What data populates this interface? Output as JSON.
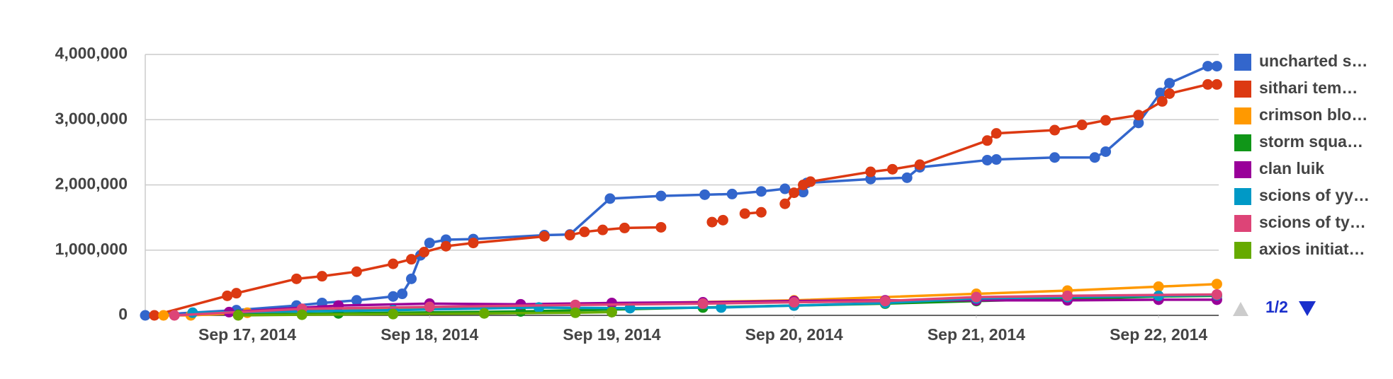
{
  "chart_data": {
    "type": "line",
    "xlim": [
      16.44,
      22.33
    ],
    "xticks": [
      {
        "value": 17,
        "label": "Sep 17, 2014"
      },
      {
        "value": 18,
        "label": "Sep 18, 2014"
      },
      {
        "value": 19,
        "label": "Sep 19, 2014"
      },
      {
        "value": 20,
        "label": "Sep 20, 2014"
      },
      {
        "value": 21,
        "label": "Sep 21, 2014"
      },
      {
        "value": 22,
        "label": "Sep 22, 2014"
      }
    ],
    "ylim": [
      0,
      4000000
    ],
    "yticks": [
      {
        "value": 0,
        "label": "0"
      },
      {
        "value": 1000000,
        "label": "1,000,000"
      },
      {
        "value": 2000000,
        "label": "2,000,000"
      },
      {
        "value": 3000000,
        "label": "3,000,000"
      },
      {
        "value": 4000000,
        "label": "4,000,000"
      }
    ],
    "grid": true,
    "legend": "right",
    "legend_page": "1/2",
    "series": [
      {
        "name": "uncharted s…",
        "color": "#3366cc",
        "x": [
          16.44,
          16.94,
          17.27,
          17.41,
          17.6,
          17.8,
          17.85,
          17.9,
          17.95,
          18.0,
          18.09,
          18.24,
          18.63,
          18.77,
          18.99,
          19.27,
          19.51,
          19.66,
          19.82,
          19.95,
          20.05,
          20.07,
          20.42,
          20.62,
          20.69,
          21.06,
          21.11,
          21.43,
          21.65,
          21.71,
          21.89,
          22.01,
          22.06,
          22.27,
          22.32
        ],
        "values": [
          0,
          80000,
          150000,
          190000,
          230000,
          290000,
          330000,
          560000,
          920000,
          1110000,
          1160000,
          1170000,
          1230000,
          1240000,
          1790000,
          1830000,
          1850000,
          1860000,
          1900000,
          1940000,
          1890000,
          2030000,
          2090000,
          2110000,
          2270000,
          2380000,
          2390000,
          2420000,
          2420000,
          2510000,
          2950000,
          3410000,
          3560000,
          3820000,
          3820000
        ]
      },
      {
        "name": "sithari tem…",
        "color": "#dc3912",
        "x": [
          16.49,
          16.89,
          16.94,
          17.27,
          17.41,
          17.6,
          17.8,
          17.9,
          17.97,
          18.09,
          18.24,
          18.63,
          18.7,
          18.77,
          18.85,
          18.95,
          19.07,
          19.27,
          19.4,
          19.55,
          19.61,
          19.67,
          19.73,
          19.82,
          19.88,
          19.95,
          20.0,
          20.05,
          20.09,
          20.42,
          20.54,
          20.69,
          21.06,
          21.11,
          21.43,
          21.58,
          21.71,
          21.89,
          22.02,
          22.06,
          22.27,
          22.32
        ],
        "values": [
          0,
          300000,
          340000,
          560000,
          600000,
          670000,
          790000,
          860000,
          970000,
          1060000,
          1110000,
          1210000,
          null,
          1230000,
          1280000,
          1310000,
          1340000,
          1350000,
          null,
          1430000,
          1460000,
          null,
          1560000,
          1580000,
          null,
          1710000,
          1880000,
          2000000,
          2050000,
          2200000,
          2240000,
          2310000,
          2680000,
          2790000,
          2840000,
          2920000,
          2990000,
          3070000,
          3280000,
          3400000,
          3540000,
          3540000
        ]
      },
      {
        "name": "crimson blo…",
        "color": "#ff9900",
        "x": [
          16.54,
          16.69,
          17.0,
          18.0,
          19.0,
          20.0,
          21.0,
          21.5,
          22.0,
          22.32
        ],
        "values": [
          0,
          0,
          40000,
          120000,
          180000,
          230000,
          330000,
          380000,
          440000,
          480000
        ]
      },
      {
        "name": "storm squa…",
        "color": "#109618",
        "x": [
          16.95,
          17.5,
          18.5,
          19.5,
          20.5,
          21.0,
          21.5,
          22.0,
          22.32
        ],
        "values": [
          10000,
          30000,
          60000,
          120000,
          180000,
          220000,
          250000,
          290000,
          300000
        ]
      },
      {
        "name": "clan luik",
        "color": "#990099",
        "x": [
          16.9,
          17.5,
          18.0,
          18.5,
          19.0,
          19.5,
          20.0,
          20.5,
          21.0,
          21.5,
          22.0,
          22.32
        ],
        "values": [
          50000,
          150000,
          180000,
          170000,
          190000,
          200000,
          220000,
          230000,
          230000,
          230000,
          240000,
          240000
        ]
      },
      {
        "name": "scions of yy…",
        "color": "#0099c6",
        "x": [
          16.7,
          17.8,
          18.6,
          19.1,
          19.6,
          20.0,
          20.5,
          21.0,
          21.5,
          22.0,
          22.32
        ],
        "values": [
          40000,
          80000,
          120000,
          110000,
          120000,
          150000,
          190000,
          260000,
          280000,
          300000,
          310000
        ]
      },
      {
        "name": "scions of ty…",
        "color": "#dd4477",
        "x": [
          16.6,
          17.3,
          18.0,
          18.8,
          19.5,
          20.0,
          20.5,
          21.0,
          21.5,
          22.32
        ],
        "values": [
          0,
          100000,
          130000,
          160000,
          180000,
          200000,
          220000,
          280000,
          300000,
          320000
        ]
      },
      {
        "name": "axios initiat…",
        "color": "#66aa00",
        "x": [
          16.95,
          17.3,
          17.8,
          18.3,
          18.8,
          19.0
        ],
        "values": [
          0,
          10000,
          20000,
          30000,
          40000,
          50000
        ]
      }
    ]
  }
}
